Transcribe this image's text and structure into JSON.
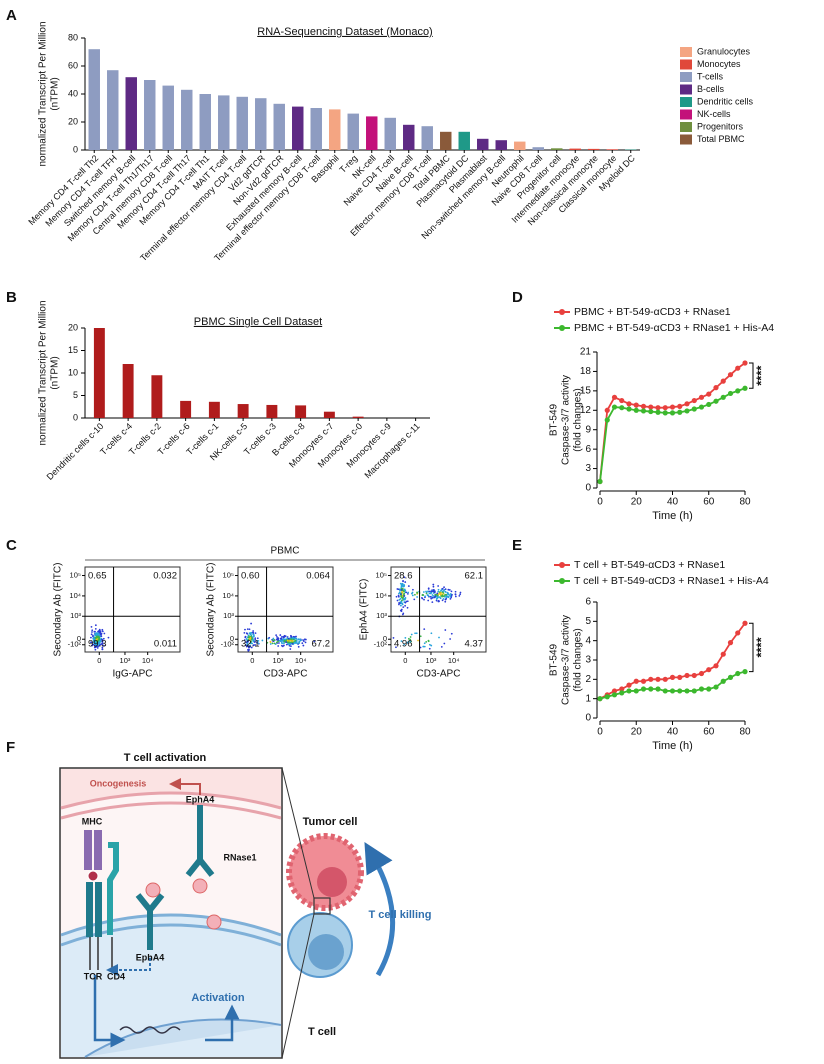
{
  "panel_labels": [
    "A",
    "B",
    "C",
    "D",
    "E",
    "F"
  ],
  "chart_data": [
    {
      "type": "bar",
      "title": "RNA-Sequencing Dataset (Monaco)",
      "ylabel": [
        "normalized Transcript Per Million",
        "(nTPM)"
      ],
      "categories": [
        "Memory CD4 T-cell Th2",
        "Memory CD4 T-cell TFH",
        "Switched memory B-cell",
        "Memory CD4 T-cell Th1/Th17",
        "Central memory CD8 T-cell",
        "Memory CD4 T-cell Th17",
        "Memory CD4 T-cell Th1",
        "MAIT T-cell",
        "Terminal effector memory CD4 T-cell",
        "Vd2 gdTCR",
        "Non-Vd2 gdTCR",
        "Exhausted memory B-cell",
        "Terminal effector memory CD8 T-cell",
        "Basophil",
        "T-reg",
        "NK-cell",
        "Naive CD4 T-cell",
        "Naive B-cell",
        "Effector memory CD8 T-cell",
        "Total PBMC",
        "Plasmacytoid DC",
        "Plasmablast",
        "Non-switched memory B-cell",
        "Neutrophil",
        "Naive CD8 T-cell",
        "Progenitor cell",
        "Intermediate monocyte",
        "Non-classical monocyte",
        "Classical monocyte",
        "Myeloid DC"
      ],
      "values": [
        72,
        57,
        52,
        50,
        46,
        43,
        40,
        39,
        38,
        37,
        33,
        31,
        30,
        29,
        26,
        24,
        23,
        18,
        17,
        13,
        13,
        8,
        7,
        6,
        2,
        1.2,
        1,
        0.8,
        0.5,
        0.3
      ],
      "colors": [
        "#8e9cc1",
        "#8e9cc1",
        "#5e2a84",
        "#8e9cc1",
        "#8e9cc1",
        "#8e9cc1",
        "#8e9cc1",
        "#8e9cc1",
        "#8e9cc1",
        "#8e9cc1",
        "#8e9cc1",
        "#5e2a84",
        "#8e9cc1",
        "#f4a582",
        "#8e9cc1",
        "#c3117a",
        "#8e9cc1",
        "#5e2a84",
        "#8e9cc1",
        "#8a5a3a",
        "#1f9988",
        "#5e2a84",
        "#5e2a84",
        "#f4a582",
        "#8e9cc1",
        "#6f8f3f",
        "#e0483a",
        "#e0483a",
        "#e0483a",
        "#1f9988"
      ],
      "ylim": [
        0,
        80
      ],
      "yticks": [
        0,
        20,
        40,
        60,
        80
      ],
      "legend": [
        {
          "name": "Granulocytes",
          "color": "#f4a582"
        },
        {
          "name": "Monocytes",
          "color": "#e0483a"
        },
        {
          "name": "T-cells",
          "color": "#8e9cc1"
        },
        {
          "name": "B-cells",
          "color": "#5e2a84"
        },
        {
          "name": "Dendritic cells",
          "color": "#1f9988"
        },
        {
          "name": "NK-cells",
          "color": "#c3117a"
        },
        {
          "name": "Progenitors",
          "color": "#6f8f3f"
        },
        {
          "name": "Total PBMC",
          "color": "#8a5a3a"
        }
      ]
    },
    {
      "type": "bar",
      "title": "PBMC Single Cell Dataset",
      "ylabel": [
        "normalized Transcript Per Million",
        "(nTPM)"
      ],
      "categories": [
        "Dendritic cells c-10",
        "T-cells c-4",
        "T-cells c-2",
        "T-cells c-6",
        "T-cells c-1",
        "NK-cells c-5",
        "T-cells c-3",
        "B-cells c-8",
        "Monocytes c-7",
        "Monocytes c-0",
        "Monocytes c-9",
        "Macrophages c-11"
      ],
      "values": [
        20,
        12,
        9.5,
        3.8,
        3.6,
        3.1,
        2.9,
        2.8,
        1.4,
        0.3,
        0,
        0
      ],
      "color": "#b01c1c",
      "ylim": [
        0,
        20
      ],
      "yticks": [
        0,
        5,
        10,
        15,
        20
      ]
    },
    {
      "type": "line",
      "ylabel": [
        "BT-549",
        "Caspase-3/7 activity",
        "(fold changes)"
      ],
      "xlabel": "Time (h)",
      "x": [
        0,
        4,
        8,
        12,
        16,
        20,
        24,
        28,
        32,
        36,
        40,
        44,
        48,
        52,
        56,
        60,
        64,
        68,
        72,
        76,
        80
      ],
      "series": [
        {
          "name": "PBMC + BT-549-αCD3 + RNase1",
          "color": "#e8403e",
          "values": [
            1,
            12,
            14,
            13.5,
            13,
            12.8,
            12.6,
            12.5,
            12.4,
            12.4,
            12.5,
            12.6,
            13,
            13.5,
            14,
            14.5,
            15.5,
            16.5,
            17.5,
            18.5,
            19.3
          ]
        },
        {
          "name": "PBMC + BT-549-αCD3 + RNase1 + His-A4",
          "color": "#3cb82e",
          "values": [
            1,
            10.5,
            12.5,
            12.4,
            12.2,
            12,
            11.9,
            11.8,
            11.7,
            11.6,
            11.6,
            11.7,
            11.9,
            12.2,
            12.5,
            12.9,
            13.4,
            14,
            14.6,
            15,
            15.4
          ]
        }
      ],
      "xlim": [
        0,
        80
      ],
      "xticks": [
        0,
        20,
        40,
        60,
        80
      ],
      "ylim": [
        0,
        21
      ],
      "yticks": [
        0,
        3,
        6,
        9,
        12,
        15,
        18,
        21
      ],
      "annotation": "****"
    },
    {
      "type": "line",
      "ylabel": [
        "BT-549",
        "Caspase-3/7 activity",
        "(fold changes)"
      ],
      "xlabel": "Time (h)",
      "x": [
        0,
        4,
        8,
        12,
        16,
        20,
        24,
        28,
        32,
        36,
        40,
        44,
        48,
        52,
        56,
        60,
        64,
        68,
        72,
        76,
        80
      ],
      "series": [
        {
          "name": "T cell + BT-549-αCD3 + RNase1",
          "color": "#e8403e",
          "values": [
            1,
            1.2,
            1.4,
            1.5,
            1.7,
            1.9,
            1.9,
            2,
            2,
            2,
            2.1,
            2.1,
            2.2,
            2.2,
            2.3,
            2.5,
            2.7,
            3.3,
            3.9,
            4.4,
            4.9
          ]
        },
        {
          "name": "T cell + BT-549-αCD3 + RNase1 + His-A4",
          "color": "#3cb82e",
          "values": [
            1,
            1.1,
            1.2,
            1.3,
            1.4,
            1.4,
            1.5,
            1.5,
            1.5,
            1.4,
            1.4,
            1.4,
            1.4,
            1.4,
            1.5,
            1.5,
            1.6,
            1.9,
            2.1,
            2.3,
            2.4
          ]
        }
      ],
      "xlim": [
        0,
        80
      ],
      "xticks": [
        0,
        20,
        40,
        60,
        80
      ],
      "ylim": [
        0,
        6
      ],
      "yticks": [
        0,
        1,
        2,
        3,
        4,
        5,
        6
      ],
      "annotation": "****"
    }
  ],
  "flow": {
    "title": "PBMC",
    "xlim": [
      -300,
      262144
    ],
    "ylim": [
      -300,
      262144
    ],
    "xticks": [
      0,
      {
        "value": 1000,
        "label": "10³"
      },
      {
        "value": 10000,
        "label": "10⁴"
      }
    ],
    "yticks": [
      {
        "value": -100,
        "label": "-10²"
      },
      0,
      {
        "value": 1000,
        "label": "10³"
      },
      {
        "value": 10000,
        "label": "10⁴"
      },
      {
        "value": 100000,
        "label": "10⁵"
      }
    ],
    "gate_x": 300,
    "gate_y": 1000,
    "plots": [
      {
        "ylabel": "Secondary Ab (FITC)",
        "xlabel": "IgG-APC",
        "quadrants": [
          0.65,
          0.032,
          99.3,
          0.011
        ],
        "value_labels": [
          "0.65",
          "0.032",
          "99.3",
          "0.011"
        ]
      },
      {
        "ylabel": "Secondary Ab (FITC)",
        "xlabel": "CD3-APC",
        "quadrants": [
          0.6,
          0.064,
          32.1,
          67.2
        ],
        "value_labels": [
          "0.60",
          "0.064",
          "32.1",
          "67.2"
        ]
      },
      {
        "ylabel": "EphA4 (FITC)",
        "xlabel": "CD3-APC",
        "quadrants": [
          28.6,
          62.1,
          4.96,
          4.37
        ],
        "value_labels": [
          "28.6",
          "62.1",
          "4.96",
          "4.37"
        ]
      }
    ]
  },
  "diagram": {
    "title": "T cell activation",
    "oncogenesis": "Oncogenesis",
    "mhc": "MHC",
    "epha4_tumor": "EphA4",
    "rnase1": "RNase1",
    "tcr": "TCR",
    "cd4": "CD4",
    "epha4_tcell": "EphA4",
    "activation": "Activation",
    "tumor_cell": "Tumor cell",
    "killing": "T cell killing",
    "t_cell": "T cell"
  }
}
